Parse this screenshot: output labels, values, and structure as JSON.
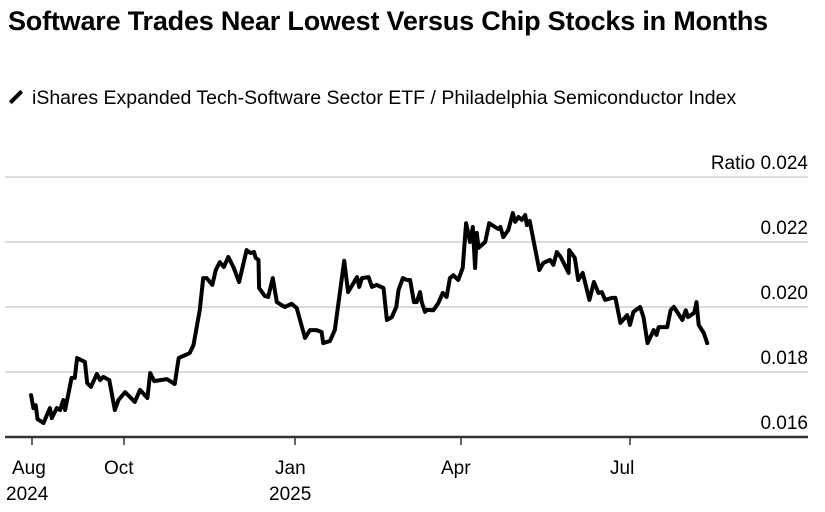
{
  "title": "Software Trades Near Lowest Versus Chip Stocks in Months",
  "legend": {
    "label": "iShares Expanded Tech-Software Sector ETF / Philadelphia Semiconductor Index",
    "icon": "line-swatch-icon",
    "color": "#000000"
  },
  "chart_data": {
    "type": "line",
    "title": "Software Trades Near Lowest Versus Chip Stocks in Months",
    "xlabel": "",
    "ylabel": "Ratio",
    "x_unit": "months since Aug 1 2024",
    "ylim": [
      0.016,
      0.024
    ],
    "yticks": [
      0.016,
      0.018,
      0.02,
      0.022,
      0.024
    ],
    "ytick_labels": [
      "0.016",
      "0.018",
      "0.020",
      "0.022",
      "Ratio 0.024"
    ],
    "xticks": [
      {
        "month": 0,
        "label": "Aug",
        "year": "2024"
      },
      {
        "month": 2,
        "label": "Oct",
        "year": ""
      },
      {
        "month": 5,
        "label": "Jan",
        "year": "2025"
      },
      {
        "month": 8,
        "label": "Apr",
        "year": ""
      },
      {
        "month": 11,
        "label": "Jul",
        "year": ""
      }
    ],
    "grid": true,
    "series": [
      {
        "name": "iShares Expanded Tech-Software Sector ETF / Philadelphia Semiconductor Index",
        "color": "#000000",
        "points": [
          [
            -0.02,
            0.01729
          ],
          [
            0.03,
            0.01689
          ],
          [
            0.08,
            0.01698
          ],
          [
            0.12,
            0.01655
          ],
          [
            0.25,
            0.01643
          ],
          [
            0.39,
            0.01689
          ],
          [
            0.43,
            0.01658
          ],
          [
            0.54,
            0.01689
          ],
          [
            0.61,
            0.01683
          ],
          [
            0.68,
            0.01714
          ],
          [
            0.72,
            0.01683
          ],
          [
            0.86,
            0.01782
          ],
          [
            0.93,
            0.01782
          ],
          [
            0.98,
            0.01843
          ],
          [
            1.15,
            0.01831
          ],
          [
            1.2,
            0.01766
          ],
          [
            1.28,
            0.01754
          ],
          [
            1.41,
            0.01794
          ],
          [
            1.48,
            0.01775
          ],
          [
            1.55,
            0.01785
          ],
          [
            1.68,
            0.01775
          ],
          [
            1.8,
            0.01683
          ],
          [
            1.88,
            0.01714
          ],
          [
            2.02,
            0.01738
          ],
          [
            2.19,
            0.01708
          ],
          [
            2.28,
            0.01745
          ],
          [
            2.41,
            0.0172
          ],
          [
            2.46,
            0.01797
          ],
          [
            2.53,
            0.01772
          ],
          [
            2.75,
            0.01778
          ],
          [
            2.89,
            0.01763
          ],
          [
            2.96,
            0.01843
          ],
          [
            3.15,
            0.01858
          ],
          [
            3.22,
            0.01883
          ],
          [
            3.33,
            0.01991
          ],
          [
            3.39,
            0.02089
          ],
          [
            3.45,
            0.02089
          ],
          [
            3.55,
            0.02068
          ],
          [
            3.61,
            0.02114
          ],
          [
            3.68,
            0.02138
          ],
          [
            3.75,
            0.02123
          ],
          [
            3.83,
            0.02154
          ],
          [
            3.92,
            0.02123
          ],
          [
            4.02,
            0.02077
          ],
          [
            4.15,
            0.02175
          ],
          [
            4.22,
            0.02166
          ],
          [
            4.28,
            0.02169
          ],
          [
            4.31,
            0.02151
          ],
          [
            4.36,
            0.02145
          ],
          [
            4.37,
            0.02058
          ],
          [
            4.47,
            0.02034
          ],
          [
            4.53,
            0.02031
          ],
          [
            4.61,
            0.02089
          ],
          [
            4.68,
            0.02015
          ],
          [
            4.82,
            0.02
          ],
          [
            4.94,
            0.0201
          ],
          [
            5.03,
            0.01997
          ],
          [
            5.18,
            0.01905
          ],
          [
            5.27,
            0.01929
          ],
          [
            5.39,
            0.01929
          ],
          [
            5.48,
            0.01923
          ],
          [
            5.51,
            0.01889
          ],
          [
            5.63,
            0.01895
          ],
          [
            5.72,
            0.01929
          ],
          [
            5.8,
            0.02031
          ],
          [
            5.89,
            0.02142
          ],
          [
            5.96,
            0.02046
          ],
          [
            6.12,
            0.02092
          ],
          [
            6.16,
            0.02062
          ],
          [
            6.21,
            0.02089
          ],
          [
            6.33,
            0.02092
          ],
          [
            6.39,
            0.02062
          ],
          [
            6.48,
            0.02068
          ],
          [
            6.6,
            0.02058
          ],
          [
            6.66,
            0.0196
          ],
          [
            6.75,
            0.01969
          ],
          [
            6.83,
            0.02
          ],
          [
            6.87,
            0.02052
          ],
          [
            6.95,
            0.02089
          ],
          [
            7.02,
            0.02083
          ],
          [
            7.08,
            0.02083
          ],
          [
            7.15,
            0.02015
          ],
          [
            7.2,
            0.02015
          ],
          [
            7.26,
            0.02046
          ],
          [
            7.29,
            0.02015
          ],
          [
            7.35,
            0.01985
          ],
          [
            7.38,
            0.01991
          ],
          [
            7.5,
            0.0199
          ],
          [
            7.59,
            0.02012
          ],
          [
            7.67,
            0.02043
          ],
          [
            7.74,
            0.02031
          ],
          [
            7.8,
            0.02089
          ],
          [
            7.86,
            0.02098
          ],
          [
            7.95,
            0.02083
          ],
          [
            8.03,
            0.0212
          ],
          [
            8.09,
            0.02258
          ],
          [
            8.16,
            0.022
          ],
          [
            8.21,
            0.02246
          ],
          [
            8.25,
            0.0212
          ],
          [
            8.28,
            0.02228
          ],
          [
            8.31,
            0.02182
          ],
          [
            8.43,
            0.022
          ],
          [
            8.5,
            0.02258
          ],
          [
            8.66,
            0.0224
          ],
          [
            8.7,
            0.02246
          ],
          [
            8.75,
            0.02215
          ],
          [
            8.84,
            0.02237
          ],
          [
            8.92,
            0.02289
          ],
          [
            8.96,
            0.02262
          ],
          [
            9.02,
            0.02277
          ],
          [
            9.08,
            0.02268
          ],
          [
            9.14,
            0.02283
          ],
          [
            9.17,
            0.02252
          ],
          [
            9.22,
            0.02265
          ],
          [
            9.39,
            0.02114
          ],
          [
            9.46,
            0.02135
          ],
          [
            9.58,
            0.02145
          ],
          [
            9.64,
            0.0213
          ],
          [
            9.7,
            0.02169
          ],
          [
            9.77,
            0.02154
          ],
          [
            9.91,
            0.02105
          ],
          [
            9.92,
            0.02175
          ],
          [
            10.02,
            0.02151
          ],
          [
            10.08,
            0.02083
          ],
          [
            10.16,
            0.02105
          ],
          [
            10.28,
            0.02022
          ],
          [
            10.36,
            0.02077
          ],
          [
            10.44,
            0.02043
          ],
          [
            10.5,
            0.02046
          ],
          [
            10.56,
            0.02022
          ],
          [
            10.68,
            0.02028
          ],
          [
            10.74,
            0.02028
          ],
          [
            10.83,
            0.01951
          ],
          [
            10.95,
            0.01975
          ],
          [
            11.0,
            0.01945
          ],
          [
            11.06,
            0.01985
          ],
          [
            11.18,
            0.02
          ],
          [
            11.24,
            0.01969
          ],
          [
            11.31,
            0.01889
          ],
          [
            11.42,
            0.01929
          ],
          [
            11.47,
            0.01914
          ],
          [
            11.51,
            0.01938
          ],
          [
            11.66,
            0.01938
          ],
          [
            11.72,
            0.0199
          ],
          [
            11.78,
            0.02
          ],
          [
            11.93,
            0.0196
          ],
          [
            11.99,
            0.0199
          ],
          [
            12.03,
            0.01969
          ],
          [
            12.14,
            0.01982
          ],
          [
            12.18,
            0.02015
          ],
          [
            12.22,
            0.01945
          ],
          [
            12.31,
            0.0192
          ],
          [
            12.37,
            0.01889
          ]
        ]
      }
    ]
  }
}
